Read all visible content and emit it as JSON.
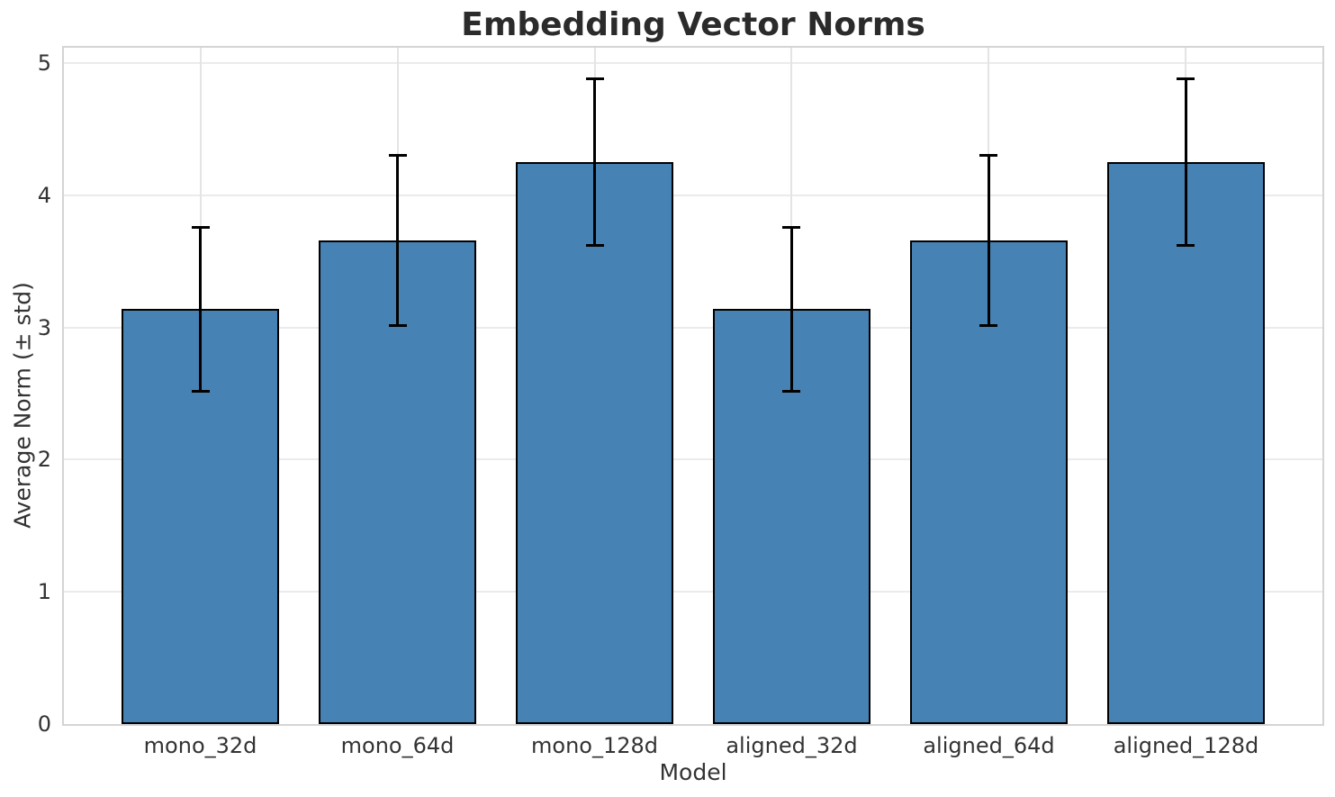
{
  "chart_data": {
    "type": "bar",
    "title": "Embedding Vector Norms",
    "xlabel": "Model",
    "ylabel": "Average Norm (± std)",
    "categories": [
      "mono_32d",
      "mono_64d",
      "mono_128d",
      "aligned_32d",
      "aligned_64d",
      "aligned_128d"
    ],
    "values": [
      3.14,
      3.66,
      4.25,
      3.14,
      3.66,
      4.25
    ],
    "errors": [
      0.62,
      0.645,
      0.63,
      0.62,
      0.645,
      0.63
    ],
    "ylim": [
      0,
      5.12
    ],
    "yticks": [
      0,
      1,
      2,
      3,
      4,
      5
    ],
    "grid": true,
    "legend": false,
    "error_bars": true,
    "colors": {
      "bar_fill": "#4682B4",
      "bar_edge": "#000000",
      "error_bar": "#000000",
      "grid_line_h": "#ebebeb",
      "grid_line_v": "#e4e4e4",
      "spine": "#d4d4d4",
      "tick_text": "#333333",
      "title_text": "#2b2b2b",
      "background": "#ffffff"
    }
  }
}
